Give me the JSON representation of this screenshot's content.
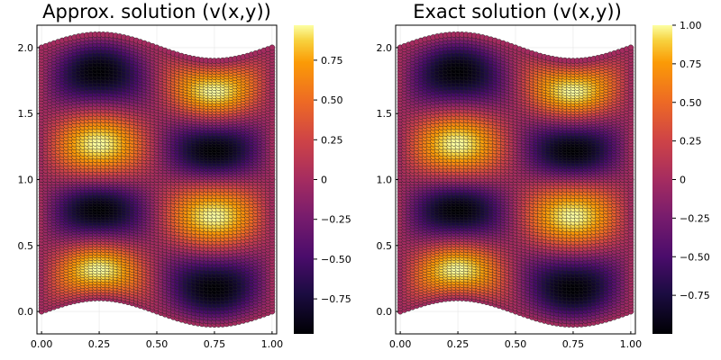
{
  "chart_data": [
    {
      "type": "scatter",
      "title": "Approx. solution (v(x,y))",
      "xlabel": "",
      "ylabel": "",
      "xlim": [
        -0.02,
        1.02
      ],
      "ylim": [
        -0.17,
        2.17
      ],
      "x_ticks": [
        "0.00",
        "0.25",
        "0.50",
        "0.75",
        "1.00"
      ],
      "y_ticks": [
        "0.0",
        "0.5",
        "1.0",
        "1.5",
        "2.0"
      ],
      "domain": {
        "bottom_boundary": "y = 0.1*sin(2*pi*x) - 0.1*sin(2*pi*x) ... (wavy, min -0.1 near x=0.75)",
        "top_boundary_at": [
          [
            0.0,
            2.0
          ],
          [
            0.25,
            2.1
          ],
          [
            0.5,
            2.0
          ],
          [
            0.75,
            1.9
          ],
          [
            1.0,
            2.0
          ]
        ],
        "bottom_boundary_at": [
          [
            0.0,
            0.0
          ],
          [
            0.25,
            0.1
          ],
          [
            0.5,
            0.0
          ],
          [
            0.75,
            -0.1
          ],
          [
            1.0,
            0.0
          ]
        ],
        "mid_line_y": 1.0
      },
      "field": "v(x,y) = sin(2*pi*x) * sin(pi*(y - 0.1*sin(2*pi*x)) * 1) pattern: peaks near (0.25,0.25),(0.75,0.75),(0.25,1.25),(0.75,1.75); troughs near (0.25,0.75),(0.75,0.25),(0.25,1.75),(0.75,1.25)",
      "grid": true,
      "legend": "none",
      "colorbar": {
        "colormap": "inferno",
        "range": [
          -0.97,
          0.97
        ],
        "ticks": [
          "0.75",
          "0.50",
          "0.25",
          "0",
          "−0.25",
          "−0.50",
          "−0.75"
        ],
        "tick_values": [
          0.75,
          0.5,
          0.25,
          0,
          -0.25,
          -0.5,
          -0.75
        ]
      }
    },
    {
      "type": "scatter",
      "title": "Exact solution (v(x,y))",
      "xlabel": "",
      "ylabel": "",
      "xlim": [
        -0.02,
        1.02
      ],
      "ylim": [
        -0.17,
        2.17
      ],
      "x_ticks": [
        "0.00",
        "0.25",
        "0.50",
        "0.75",
        "1.00"
      ],
      "y_ticks": [
        "0.0",
        "0.5",
        "1.0",
        "1.5",
        "2.0"
      ],
      "grid": true,
      "legend": "none",
      "colorbar": {
        "colormap": "inferno",
        "range": [
          -1.0,
          1.0
        ],
        "ticks": [
          "1.00",
          "0.75",
          "0.50",
          "0.25",
          "0",
          "−0.25",
          "−0.50",
          "−0.75"
        ],
        "tick_values": [
          1.0,
          0.75,
          0.5,
          0.25,
          0,
          -0.25,
          -0.5,
          -0.75
        ]
      }
    }
  ]
}
